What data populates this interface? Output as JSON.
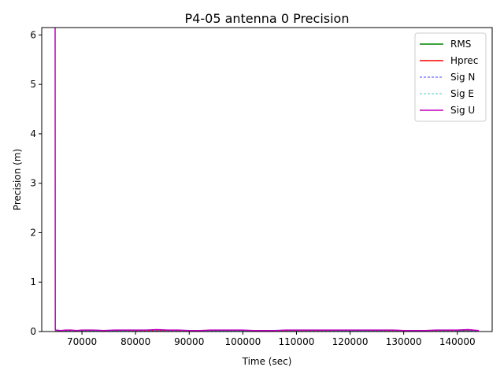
{
  "chart_data": {
    "type": "line",
    "title": "P4-05 antenna 0 Precision",
    "xlabel": "Time (sec)",
    "ylabel": "Precision (m)",
    "xlim": [
      62500,
      146500
    ],
    "ylim": [
      0,
      6.15
    ],
    "xticks": [
      70000,
      80000,
      90000,
      100000,
      110000,
      120000,
      130000,
      140000
    ],
    "xtick_labels": [
      "70000",
      "80000",
      "90000",
      "100000",
      "110000",
      "120000",
      "130000",
      "140000"
    ],
    "yticks": [
      0,
      1,
      2,
      3,
      4,
      5,
      6
    ],
    "ytick_labels": [
      "0",
      "1",
      "2",
      "3",
      "4",
      "5",
      "6"
    ],
    "grid": false,
    "legend_position": "top-right",
    "series": [
      {
        "name": "RMS",
        "color": "#008000",
        "style": "solid",
        "x": [
          65000,
          65100,
          70000,
          80000,
          90000,
          100000,
          110000,
          120000,
          130000,
          140000,
          144000
        ],
        "y": [
          0.01,
          0.01,
          0.01,
          0.01,
          0.01,
          0.01,
          0.01,
          0.01,
          0.01,
          0.01,
          0.01
        ]
      },
      {
        "name": "Hprec",
        "color": "#ff0000",
        "style": "solid",
        "x": [
          65000,
          65100,
          70000,
          80000,
          90000,
          100000,
          110000,
          120000,
          130000,
          140000,
          144000
        ],
        "y": [
          0.02,
          0.015,
          0.015,
          0.015,
          0.015,
          0.015,
          0.015,
          0.015,
          0.015,
          0.015,
          0.015
        ]
      },
      {
        "name": "Sig N",
        "color": "#0000ff",
        "style": "dashed",
        "x": [
          65000,
          65100,
          70000,
          80000,
          90000,
          100000,
          110000,
          120000,
          130000,
          140000,
          144000
        ],
        "y": [
          0.02,
          0.012,
          0.012,
          0.012,
          0.012,
          0.012,
          0.012,
          0.012,
          0.012,
          0.012,
          0.012
        ]
      },
      {
        "name": "Sig E",
        "color": "#00bfbf",
        "style": "dashed",
        "x": [
          65000,
          65100,
          70000,
          80000,
          90000,
          100000,
          110000,
          120000,
          130000,
          140000,
          144000
        ],
        "y": [
          0.02,
          0.012,
          0.012,
          0.012,
          0.012,
          0.012,
          0.012,
          0.012,
          0.012,
          0.012,
          0.012
        ]
      },
      {
        "name": "Sig U",
        "color": "#bf00bf",
        "style": "solid",
        "x": [
          64980,
          65000,
          65020,
          65100,
          66000,
          67000,
          68000,
          69000,
          70000,
          72000,
          74000,
          76000,
          78000,
          80000,
          82000,
          84000,
          86000,
          88000,
          90000,
          92000,
          94000,
          96000,
          98000,
          100000,
          102000,
          104000,
          106000,
          108000,
          110000,
          112000,
          114000,
          116000,
          118000,
          120000,
          122000,
          124000,
          126000,
          128000,
          130000,
          132000,
          134000,
          136000,
          138000,
          140000,
          142000,
          144000
        ],
        "y": [
          6.2,
          6.2,
          0.04,
          0.03,
          0.02,
          0.03,
          0.03,
          0.02,
          0.03,
          0.03,
          0.02,
          0.03,
          0.03,
          0.03,
          0.03,
          0.04,
          0.03,
          0.03,
          0.02,
          0.02,
          0.03,
          0.03,
          0.03,
          0.03,
          0.02,
          0.02,
          0.02,
          0.03,
          0.03,
          0.03,
          0.03,
          0.03,
          0.03,
          0.03,
          0.03,
          0.03,
          0.03,
          0.03,
          0.02,
          0.02,
          0.02,
          0.03,
          0.03,
          0.03,
          0.04,
          0.02
        ]
      }
    ]
  }
}
